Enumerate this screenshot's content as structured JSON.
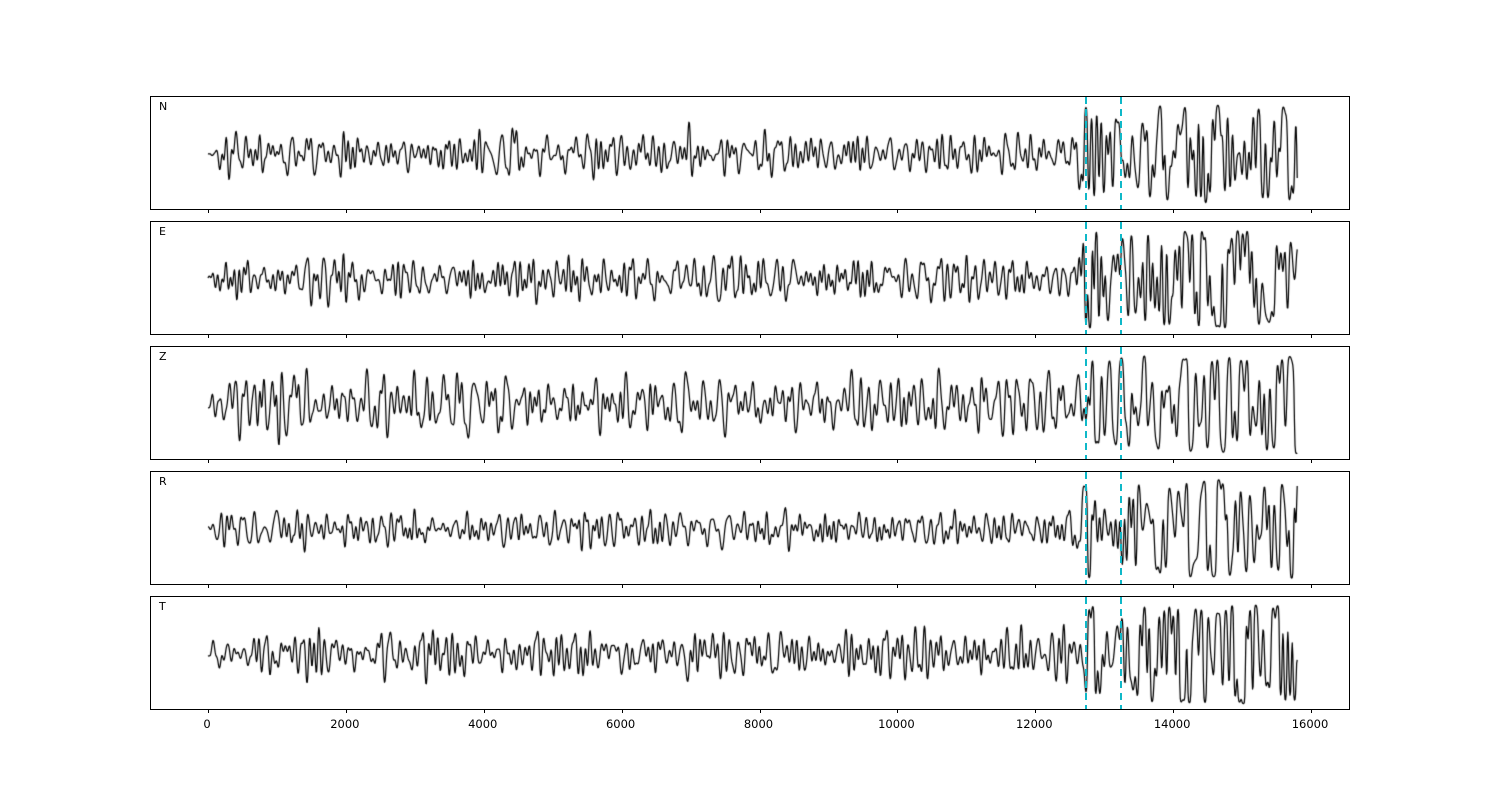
{
  "figure": {
    "background": "#ffffff"
  },
  "chart_data": {
    "type": "line",
    "subtype": "seismogram-multipanel",
    "title": "",
    "xlabel": "",
    "ylabel": "",
    "x_range": [
      0,
      16000
    ],
    "x_data_end": 15800,
    "x_ticks": [
      0,
      2000,
      4000,
      6000,
      8000,
      10000,
      12000,
      14000,
      16000
    ],
    "x_tick_labels": [
      "0",
      "2000",
      "4000",
      "6000",
      "8000",
      "10000",
      "12000",
      "14000",
      "16000"
    ],
    "grid": false,
    "legend": "none",
    "trace_color": "#000000",
    "pick_lines": {
      "times": [
        12740,
        13240
      ],
      "color": "#0fb8c8",
      "style": "dashed",
      "spans": "all-panels"
    },
    "panels": [
      {
        "label": "N",
        "seed": 11,
        "noise_amp": 1.0,
        "onset_amp": 4.6,
        "coda_amp": 3.6,
        "early_spikes": []
      },
      {
        "label": "E",
        "seed": 23,
        "noise_amp": 1.05,
        "onset_amp": 3.2,
        "coda_amp": 4.0,
        "early_spikes": []
      },
      {
        "label": "Z",
        "seed": 37,
        "noise_amp": 1.6,
        "onset_amp": 1.6,
        "coda_amp": 2.6,
        "early_spikes": [
          {
            "t": 420,
            "amp": 3.2
          },
          {
            "t": 760,
            "amp": 2.2
          },
          {
            "t": 1020,
            "amp": 4.4
          },
          {
            "t": 1350,
            "amp": 2.4
          }
        ]
      },
      {
        "label": "R",
        "seed": 41,
        "noise_amp": 0.9,
        "onset_amp": 4.2,
        "coda_amp": 3.3,
        "early_spikes": []
      },
      {
        "label": "T",
        "seed": 53,
        "noise_amp": 1.15,
        "onset_amp": 3.4,
        "coda_amp": 4.1,
        "early_spikes": []
      }
    ]
  }
}
